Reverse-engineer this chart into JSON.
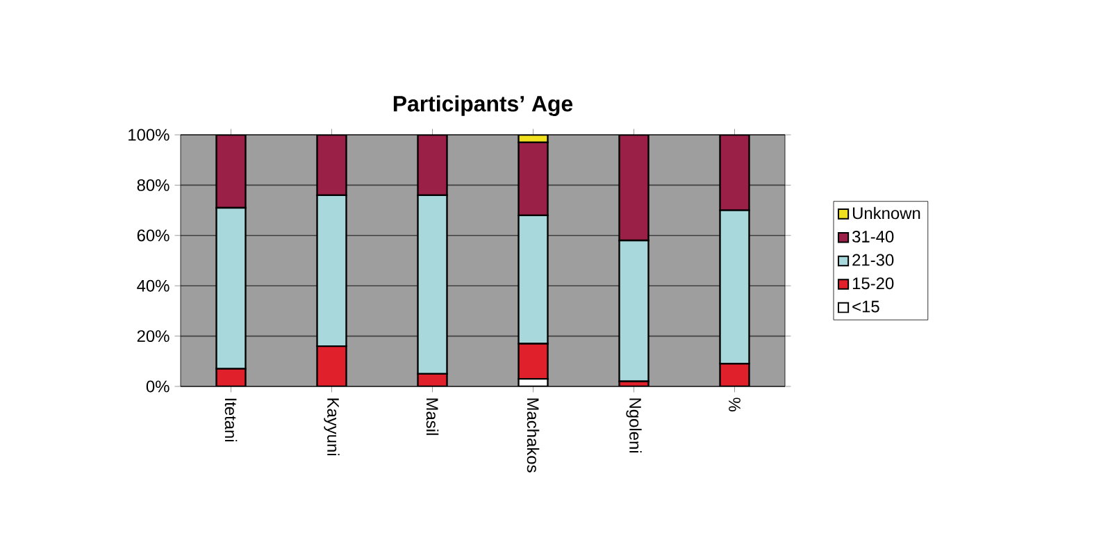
{
  "chart_data": {
    "type": "bar",
    "stacked": true,
    "title": "Participants’ Age",
    "categories": [
      "Itetani",
      "Kayyuni",
      "Masil",
      "Machakos",
      "Ngoleni",
      "%"
    ],
    "series": [
      {
        "name": "<15",
        "color": "#ffffff",
        "values": [
          0,
          0,
          0,
          3,
          0,
          0
        ]
      },
      {
        "name": "15-20",
        "color": "#e0202a",
        "values": [
          7,
          16,
          5,
          14,
          2,
          9
        ]
      },
      {
        "name": "21-30",
        "color": "#a8d8dc",
        "values": [
          64,
          60,
          71,
          51,
          56,
          61
        ]
      },
      {
        "name": "31-40",
        "color": "#9b2048",
        "values": [
          29,
          24,
          24,
          29,
          42,
          30
        ]
      },
      {
        "name": "Unknown",
        "color": "#f0e020",
        "values": [
          0,
          0,
          0,
          3,
          0,
          0
        ]
      }
    ],
    "ylim": [
      0,
      100
    ],
    "yticks": [
      {
        "value": 0,
        "label": "0%"
      },
      {
        "value": 20,
        "label": "20%"
      },
      {
        "value": 40,
        "label": "40%"
      },
      {
        "value": 60,
        "label": "60%"
      },
      {
        "value": 80,
        "label": "80%"
      },
      {
        "value": 100,
        "label": "100%"
      }
    ],
    "grid": "y",
    "legend": "right"
  }
}
